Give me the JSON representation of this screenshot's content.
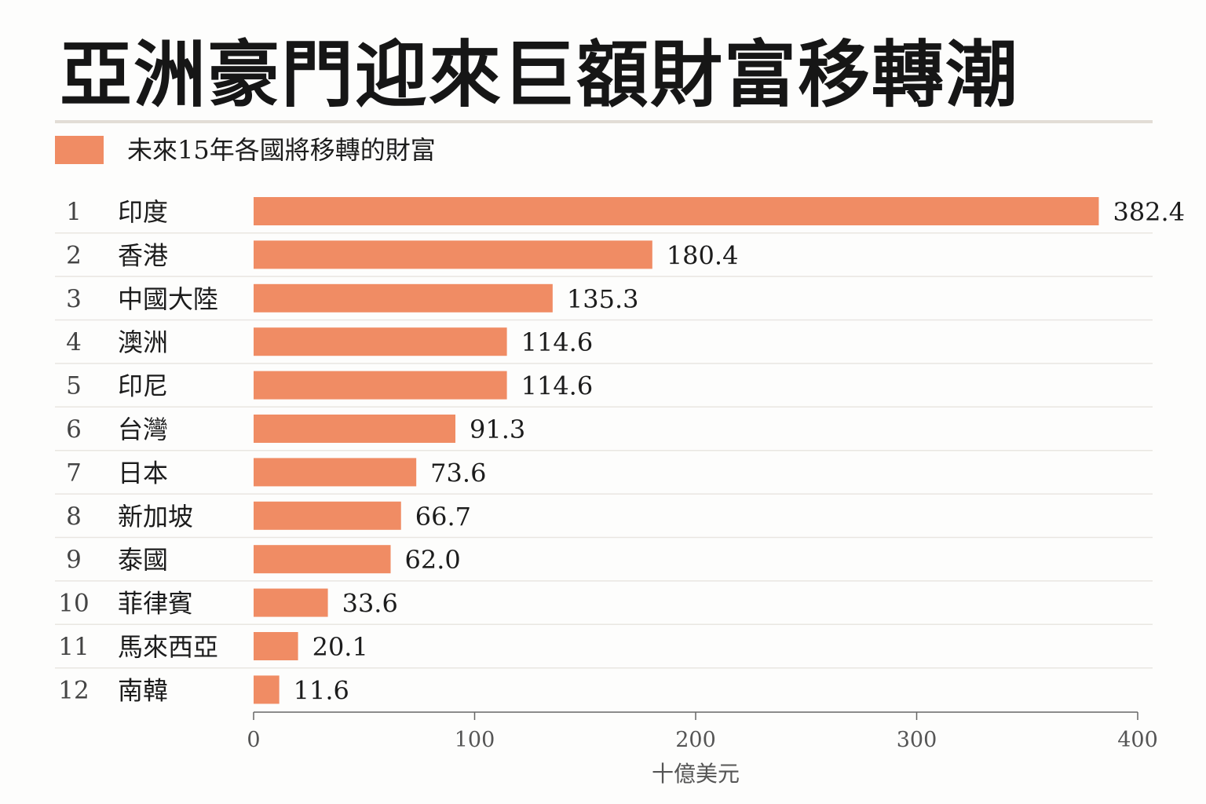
{
  "title": "亞洲豪門迎來巨額財富移轉潮",
  "chart_data": {
    "type": "bar",
    "orientation": "horizontal",
    "title": "亞洲豪門迎來巨額財富移轉潮",
    "legend": {
      "label": "未來15年各國將移轉的財富",
      "color": "#f08c64",
      "position": "top-left"
    },
    "ranks": [
      "1",
      "2",
      "3",
      "4",
      "5",
      "6",
      "7",
      "8",
      "9",
      "10",
      "11",
      "12"
    ],
    "categories": [
      "印度",
      "香港",
      "中國大陸",
      "澳洲",
      "印尼",
      "台灣",
      "日本",
      "新加坡",
      "泰國",
      "菲律賓",
      "馬來西亞",
      "南韓"
    ],
    "values": [
      382.4,
      180.4,
      135.3,
      114.6,
      114.6,
      91.3,
      73.6,
      66.7,
      62.0,
      33.6,
      20.1,
      11.6
    ],
    "value_labels": [
      "382.4",
      "180.4",
      "135.3",
      "114.6",
      "114.6",
      "91.3",
      "73.6",
      "66.7",
      "62.0",
      "33.6",
      "20.1",
      "11.6"
    ],
    "xlim": [
      0,
      400
    ],
    "xticks": [
      0,
      100,
      200,
      300,
      400
    ],
    "xtick_labels": [
      "0",
      "100",
      "200",
      "300",
      "400"
    ],
    "xlabel": "十億美元",
    "bar_color": "#f08c64",
    "grid": false
  }
}
